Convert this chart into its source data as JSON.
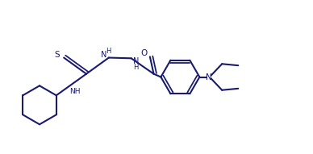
{
  "background_color": "#ffffff",
  "line_color": "#1a1a6e",
  "line_width": 1.5,
  "figsize": [
    3.88,
    1.91
  ],
  "dpi": 100,
  "xlim": [
    0,
    10
  ],
  "ylim": [
    0,
    4.9
  ]
}
